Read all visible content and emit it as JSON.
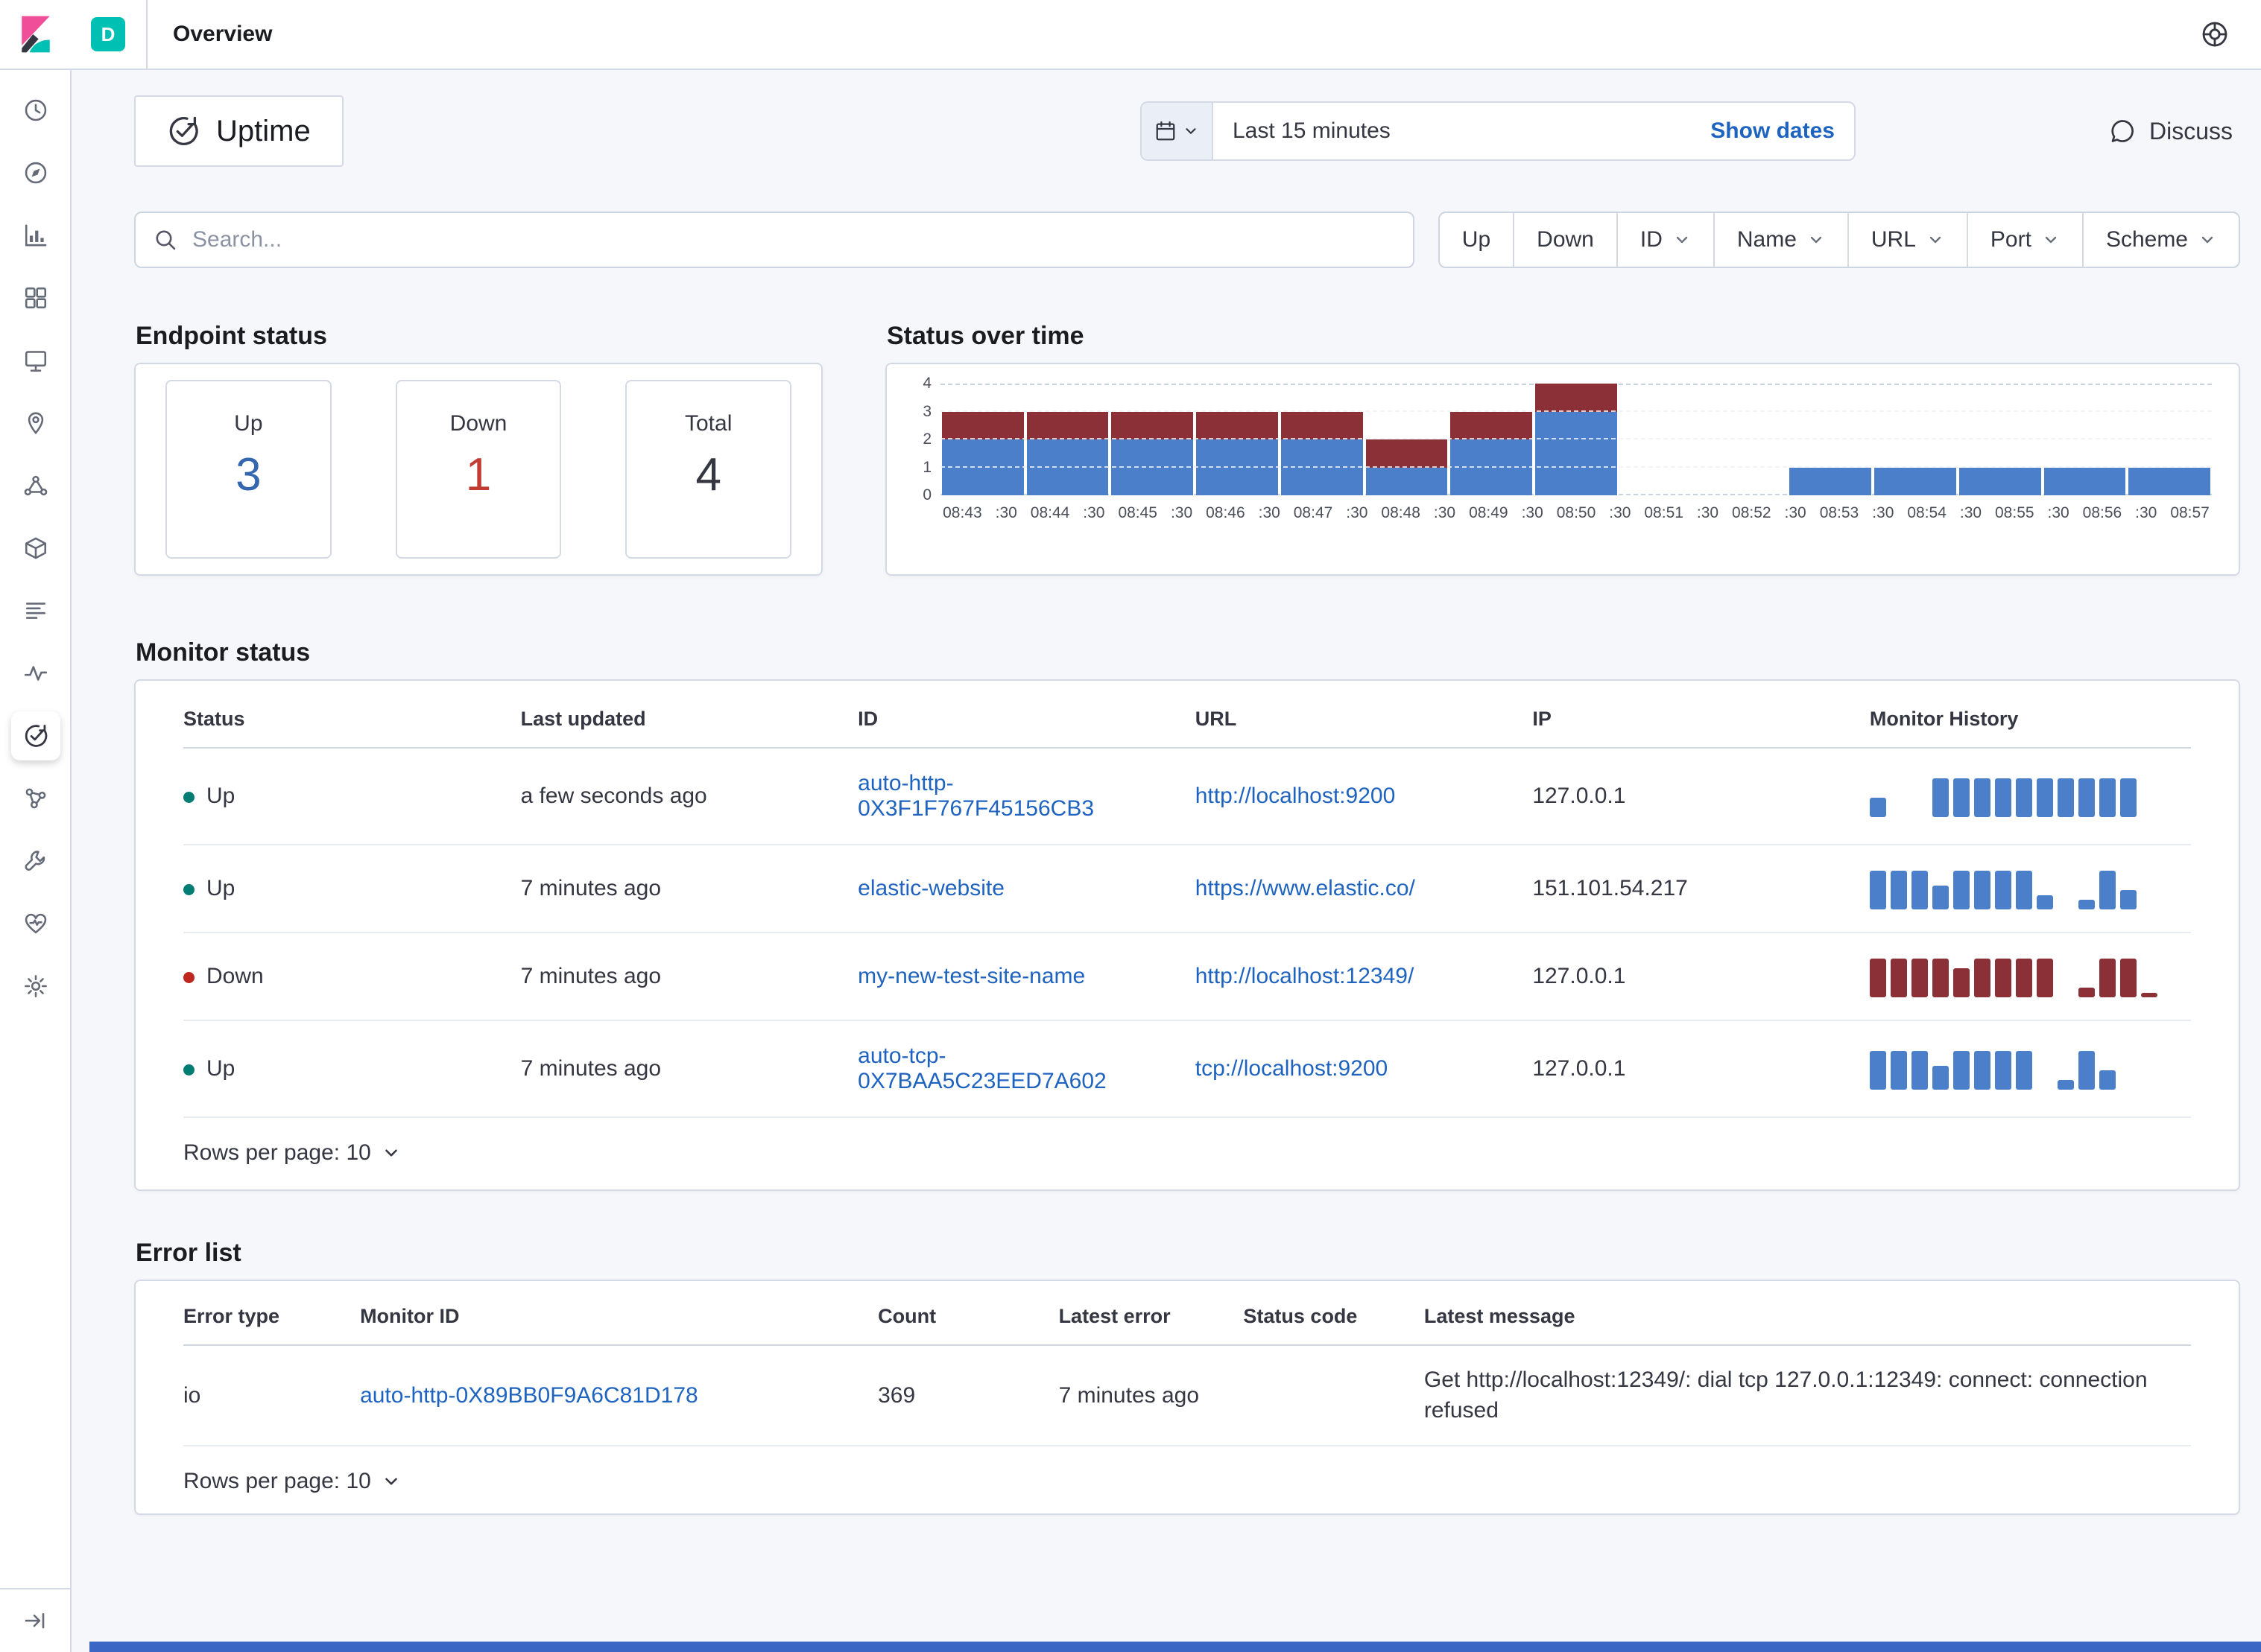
{
  "topbar": {
    "space_badge": "D",
    "breadcrumb": "Overview"
  },
  "page_header": {
    "title": "Uptime",
    "time_range": "Last 15 minutes",
    "show_dates_label": "Show dates",
    "discuss_label": "Discuss"
  },
  "search": {
    "placeholder": "Search..."
  },
  "filter_bar": {
    "items": [
      {
        "label": "Up",
        "has_dropdown": false
      },
      {
        "label": "Down",
        "has_dropdown": false
      },
      {
        "label": "ID",
        "has_dropdown": true
      },
      {
        "label": "Name",
        "has_dropdown": true
      },
      {
        "label": "URL",
        "has_dropdown": true
      },
      {
        "label": "Port",
        "has_dropdown": true
      },
      {
        "label": "Scheme",
        "has_dropdown": true
      }
    ]
  },
  "endpoint_status": {
    "title": "Endpoint status",
    "stats": [
      {
        "label": "Up",
        "value": "3",
        "color": "#3567b1"
      },
      {
        "label": "Down",
        "value": "1",
        "color": "#c33c33"
      },
      {
        "label": "Total",
        "value": "4",
        "color": "#343741"
      }
    ]
  },
  "chart_data": {
    "type": "bar",
    "stacked": true,
    "title": "Status over time",
    "x": [
      "08:43",
      "08:44",
      "08:45",
      "08:46",
      "08:47",
      "08:48",
      "08:49",
      "08:50",
      "08:51",
      "08:52",
      "08:53",
      "08:54",
      "08:55",
      "08:56",
      "08:57"
    ],
    "series": [
      {
        "name": "Up",
        "color": "#4c7fc9",
        "values": [
          2,
          2,
          2,
          2,
          2,
          1,
          2,
          3,
          0,
          0,
          1,
          1,
          1,
          1,
          1
        ]
      },
      {
        "name": "Down",
        "color": "#8b3036",
        "values": [
          1,
          1,
          1,
          1,
          1,
          1,
          1,
          1,
          0,
          0,
          0,
          0,
          0,
          0,
          0
        ]
      }
    ],
    "tick_labels": [
      "08:43",
      ":30",
      "08:44",
      ":30",
      "08:45",
      ":30",
      "08:46",
      ":30",
      "08:47",
      ":30",
      "08:48",
      ":30",
      "08:49",
      ":30",
      "08:50",
      ":30",
      "08:51",
      ":30",
      "08:52",
      ":30",
      "08:53",
      ":30",
      "08:54",
      ":30",
      "08:55",
      ":30",
      "08:56",
      ":30",
      "08:57"
    ],
    "yticks": [
      0,
      1,
      2,
      3,
      4
    ],
    "ylim": [
      0,
      4
    ],
    "legend": "off",
    "grid": "dashed-horizontal"
  },
  "monitor_table": {
    "title": "Monitor status",
    "columns": [
      "Status",
      "Last updated",
      "ID",
      "URL",
      "IP",
      "Monitor History"
    ],
    "rows_per_page_label": "Rows per page: 10",
    "rows": [
      {
        "status": "Up",
        "status_color": "#017d73",
        "last_updated": "a few seconds ago",
        "id": "auto-http-0X3F1F767F45156CB3",
        "url": "http://localhost:9200",
        "ip": "127.0.0.1",
        "history": {
          "color": "#4c7fc9",
          "bars": [
            4,
            0,
            0,
            8,
            8,
            8,
            8,
            8,
            8,
            8,
            8,
            8,
            8
          ]
        }
      },
      {
        "status": "Up",
        "status_color": "#017d73",
        "last_updated": "7 minutes ago",
        "id": "elastic-website",
        "url": "https://www.elastic.co/",
        "ip": "151.101.54.217",
        "history": {
          "color": "#4c7fc9",
          "bars": [
            8,
            8,
            8,
            5,
            8,
            8,
            8,
            8,
            3,
            0,
            2,
            8,
            4
          ]
        }
      },
      {
        "status": "Down",
        "status_color": "#bd271e",
        "last_updated": "7 minutes ago",
        "id": "my-new-test-site-name",
        "url": "http://localhost:12349/",
        "ip": "127.0.0.1",
        "history": {
          "color": "#8b3036",
          "bars": [
            8,
            8,
            8,
            8,
            6,
            8,
            8,
            8,
            8,
            0,
            2,
            8,
            8,
            1
          ]
        }
      },
      {
        "status": "Up",
        "status_color": "#017d73",
        "last_updated": "7 minutes ago",
        "id": "auto-tcp-0X7BAA5C23EED7A602",
        "url": "tcp://localhost:9200",
        "ip": "127.0.0.1",
        "history": {
          "color": "#4c7fc9",
          "bars": [
            8,
            8,
            8,
            5,
            8,
            8,
            8,
            8,
            0,
            2,
            8,
            4
          ]
        }
      }
    ]
  },
  "error_table": {
    "title": "Error list",
    "columns": [
      "Error type",
      "Monitor ID",
      "Count",
      "Latest error",
      "Status code",
      "Latest message"
    ],
    "rows_per_page_label": "Rows per page: 10",
    "rows": [
      {
        "error_type": "io",
        "monitor_id": "auto-http-0X89BB0F9A6C81D178",
        "count": "369",
        "latest_error": "7 minutes ago",
        "status_code": "",
        "latest_message": "Get http://localhost:12349/: dial tcp 127.0.0.1:12349: connect: connection refused"
      }
    ]
  },
  "icons": {
    "search": "magnifier",
    "calendar": "calendar-grid",
    "help": "life-ring",
    "discuss": "speech-bubble",
    "chevron": "chevron-down",
    "uptime": "clock-check-arrow"
  },
  "colors": {
    "background": "#f5f7fa",
    "panel_border": "#d3dae6",
    "link": "#1f63c0",
    "up_green": "#017d73",
    "down_red": "#bd271e",
    "chart_up_blue": "#4c7fc9",
    "chart_down_red": "#8b3036",
    "accent_bar": "#3b66c4",
    "space_badge": "#00bfb3"
  }
}
